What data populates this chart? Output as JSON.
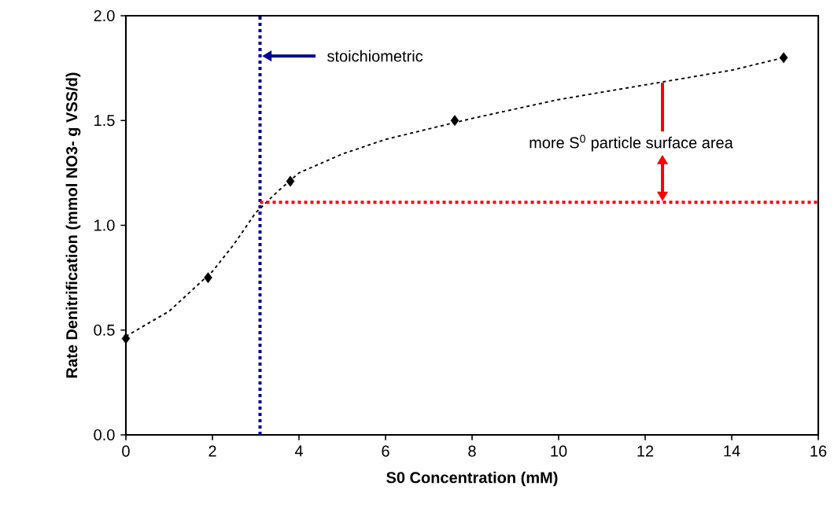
{
  "chart_data": {
    "type": "scatter",
    "xlabel": "S0 Concentration (mM)",
    "ylabel": "Rate Denitrification (mmol NO3- g VSS/d)",
    "xlim": [
      0,
      16
    ],
    "ylim": [
      0,
      2
    ],
    "xticks": [
      0,
      2,
      4,
      6,
      8,
      10,
      12,
      14,
      16
    ],
    "yticks": [
      {
        "value": 0,
        "label": "0.0"
      },
      {
        "value": 0.5,
        "label": "0.5"
      },
      {
        "value": 1,
        "label": "1.0"
      },
      {
        "value": 1.5,
        "label": "1.5"
      },
      {
        "value": 2,
        "label": "2.0"
      }
    ],
    "marker": "diamond",
    "series": [
      {
        "color": "#000000",
        "x": [
          0,
          1.9,
          3.8,
          7.6,
          15.2
        ],
        "values": [
          0.46,
          0.75,
          1.21,
          1.5,
          1.8
        ]
      },
      {
        "type": "line",
        "color": "#000000",
        "line_style": "dashed",
        "marker": "none",
        "x": [
          0,
          1,
          2,
          2.5,
          3,
          3.5,
          4,
          5,
          6,
          7,
          8,
          10,
          12,
          14,
          15.2
        ],
        "values": [
          0.47,
          0.59,
          0.78,
          0.91,
          1.06,
          1.16,
          1.25,
          1.34,
          1.41,
          1.46,
          1.51,
          1.6,
          1.67,
          1.74,
          1.8
        ]
      },
      {
        "type": "line",
        "color": "#ff0000",
        "line_style": "dotted",
        "marker": "none",
        "x": [
          3.1,
          16
        ],
        "values": [
          1.11,
          1.11
        ]
      }
    ],
    "ref_lines": [
      {
        "axis": "x",
        "value": 3.1,
        "color": "#000099",
        "line_style": "dotted"
      }
    ],
    "annotations": [
      "stoichiometric",
      {
        "text": "more S$^{0}$ particle surface area",
        "x": 12.4,
        "y": 1.68
      }
    ]
  }
}
